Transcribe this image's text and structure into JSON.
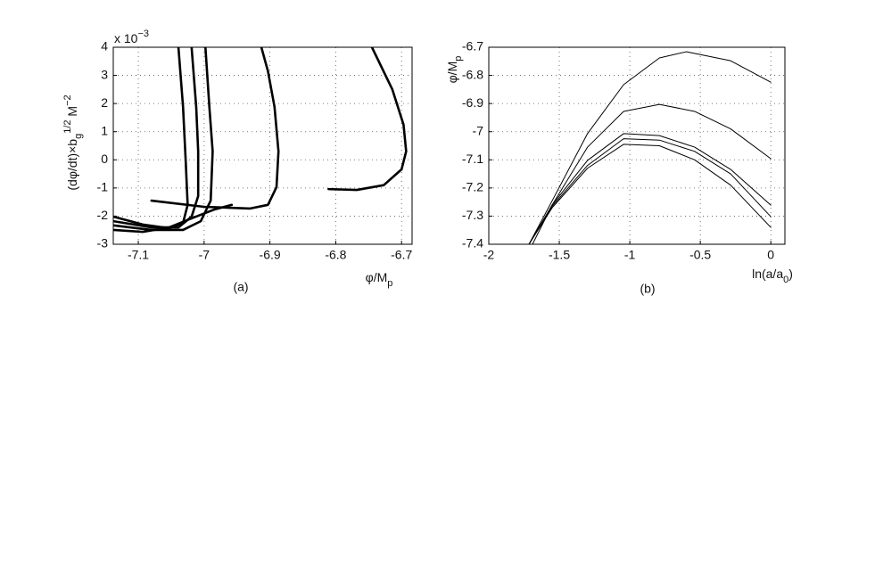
{
  "chart_data": [
    {
      "type": "line",
      "ylabel": [
        "(dφ/dt)×b",
        "g",
        "1/2",
        " M",
        "−2"
      ],
      "xlabel": [
        "φ/M",
        "p"
      ],
      "multiplier": [
        "x 10",
        "−3"
      ],
      "caption": "(a)",
      "xlim": [
        -7.138,
        -6.684
      ],
      "xticks": [
        -7.1,
        -7,
        -6.9,
        -6.8,
        -6.7
      ],
      "ylim": [
        -3,
        4
      ],
      "yticks": [
        -3,
        -2,
        -1,
        0,
        1,
        2,
        3,
        4
      ],
      "grid": true,
      "series": [
        {
          "color": "#000000",
          "x": [
            -6.811,
            -6.768,
            -6.727,
            -6.7,
            -6.693,
            -6.697,
            -6.714,
            -6.745
          ],
          "values": [
            -1.04,
            -1.07,
            -0.9,
            -0.34,
            0.3,
            1.25,
            2.5,
            4
          ]
        },
        {
          "color": "#000000",
          "x": [
            -7.08,
            -7.0,
            -6.93,
            -6.903,
            -6.89,
            -6.887,
            -6.893,
            -6.903,
            -6.913
          ],
          "values": [
            -1.45,
            -1.67,
            -1.73,
            -1.6,
            -0.97,
            0.3,
            1.88,
            3.15,
            4
          ]
        },
        {
          "color": "#000000",
          "x": [
            -7.138,
            -7.093,
            -7.053,
            -7.032,
            -7.025,
            -7.028,
            -7.032,
            -7.039
          ],
          "values": [
            -2.02,
            -2.3,
            -2.43,
            -2.24,
            -1.6,
            -0.02,
            1.88,
            4
          ]
        },
        {
          "color": "#000000",
          "x": [
            -7.138,
            -7.08,
            -7.039,
            -7.019,
            -7.009,
            -7.009,
            -7.012,
            -7.019
          ],
          "values": [
            -2.18,
            -2.4,
            -2.4,
            -2.02,
            -1.29,
            0.3,
            1.88,
            4
          ]
        },
        {
          "color": "#000000",
          "x": [
            -7.138,
            -7.08,
            -7.032,
            -7.005,
            -6.99,
            -6.987,
            -6.992,
            -6.998
          ],
          "values": [
            -2.33,
            -2.49,
            -2.49,
            -2.18,
            -1.45,
            0.3,
            1.88,
            4
          ]
        },
        {
          "color": "#000000",
          "x": [
            -7.138,
            -7.093,
            -7.053,
            -7.019,
            -6.985,
            -6.958
          ],
          "values": [
            -2.49,
            -2.56,
            -2.4,
            -2.08,
            -1.77,
            -1.6
          ]
        }
      ]
    },
    {
      "type": "line",
      "ylabel": [
        "φ/M",
        "p"
      ],
      "xlabel": [
        "ln(a/a",
        "0",
        ")"
      ],
      "caption": "(b)",
      "xlim": [
        -2,
        0.1
      ],
      "xticks": [
        -2,
        -1.5,
        -1,
        -0.5,
        0
      ],
      "ylim": [
        -7.4,
        -6.7
      ],
      "yticks": [
        -7.4,
        -7.3,
        -7.2,
        -7.1,
        -7,
        -6.9,
        -6.8,
        -6.7
      ],
      "grid": true,
      "series": [
        {
          "color": "#000000",
          "x": [
            -1.715,
            -1.55,
            -1.3,
            -1.044,
            -0.79,
            -0.6,
            -0.285,
            0
          ],
          "values": [
            -7.4,
            -7.245,
            -7.007,
            -6.833,
            -6.738,
            -6.716,
            -6.748,
            -6.824
          ]
        },
        {
          "color": "#000000",
          "x": [
            -1.69,
            -1.55,
            -1.3,
            -1.044,
            -0.79,
            -0.54,
            -0.285,
            0
          ],
          "values": [
            -7.4,
            -7.26,
            -7.055,
            -6.928,
            -6.903,
            -6.928,
            -6.99,
            -7.096
          ]
        },
        {
          "color": "#000000",
          "x": [
            -1.715,
            -1.55,
            -1.3,
            -1.044,
            -0.79,
            -0.54,
            -0.285,
            0
          ],
          "values": [
            -7.4,
            -7.26,
            -7.102,
            -7.007,
            -7.014,
            -7.055,
            -7.134,
            -7.261
          ]
        },
        {
          "color": "#000000",
          "x": [
            -1.715,
            -1.55,
            -1.3,
            -1.044,
            -0.79,
            -0.54,
            -0.285,
            0
          ],
          "values": [
            -7.4,
            -7.265,
            -7.12,
            -7.025,
            -7.03,
            -7.07,
            -7.15,
            -7.302
          ]
        },
        {
          "color": "#000000",
          "x": [
            -1.715,
            -1.55,
            -1.3,
            -1.044,
            -0.79,
            -0.54,
            -0.285,
            0
          ],
          "values": [
            -7.4,
            -7.27,
            -7.13,
            -7.045,
            -7.05,
            -7.1,
            -7.19,
            -7.34
          ]
        }
      ]
    }
  ]
}
